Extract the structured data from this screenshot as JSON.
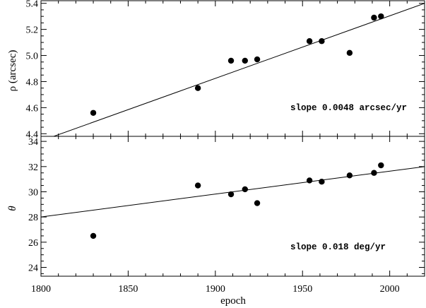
{
  "chart_data": [
    {
      "type": "scatter",
      "title": "",
      "xlabel": "epoch",
      "ylabel": "ρ (arcsec)",
      "xlim": [
        1800,
        2020
      ],
      "ylim": [
        4.38,
        5.42
      ],
      "xticks": [
        1800,
        1850,
        1900,
        1950,
        2000
      ],
      "yticks": [
        4.4,
        4.6,
        4.8,
        5.0,
        5.2,
        5.4
      ],
      "ytick_labels": [
        "4.4",
        "4.6",
        "4.8",
        "5.0",
        "5.2",
        "5.4"
      ],
      "series": [
        {
          "points": [
            [
              1830,
              4.56
            ],
            [
              1890,
              4.75
            ],
            [
              1909,
              4.96
            ],
            [
              1917,
              4.96
            ],
            [
              1924,
              4.97
            ],
            [
              1954,
              5.11
            ],
            [
              1961,
              5.11
            ],
            [
              1977,
              5.02
            ],
            [
              1991,
              5.29
            ],
            [
              1995,
              5.3
            ]
          ]
        }
      ],
      "fit_line": [
        [
          1800,
          4.345
        ],
        [
          2020,
          5.4
        ]
      ],
      "annotation": "slope 0.0048 arcsec/yr"
    },
    {
      "type": "scatter",
      "title": "",
      "xlabel": "epoch",
      "ylabel": "θ",
      "xlim": [
        1800,
        2020
      ],
      "ylim": [
        23.3,
        34.4
      ],
      "xticks": [
        1800,
        1850,
        1900,
        1950,
        2000
      ],
      "xtick_labels": [
        "1800",
        "1850",
        "1900",
        "1950",
        "2000"
      ],
      "yticks": [
        24,
        26,
        28,
        30,
        32,
        34
      ],
      "ytick_labels": [
        "24",
        "26",
        "28",
        "30",
        "32",
        "34"
      ],
      "series": [
        {
          "points": [
            [
              1830,
              26.5
            ],
            [
              1890,
              30.5
            ],
            [
              1909,
              29.8
            ],
            [
              1917,
              30.2
            ],
            [
              1924,
              29.1
            ],
            [
              1954,
              30.9
            ],
            [
              1961,
              30.8
            ],
            [
              1977,
              31.3
            ],
            [
              1991,
              31.5
            ],
            [
              1995,
              32.1
            ]
          ]
        }
      ],
      "fit_line": [
        [
          1800,
          28.0
        ],
        [
          2020,
          32.0
        ]
      ],
      "annotation": "slope 0.018 deg/yr"
    }
  ]
}
